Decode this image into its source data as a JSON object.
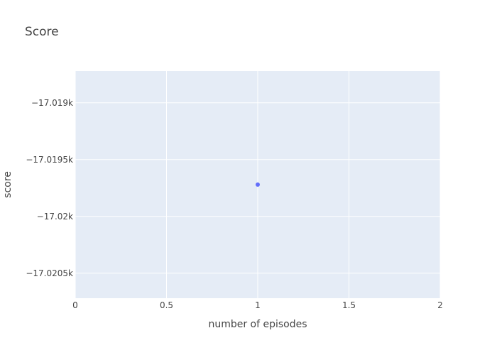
{
  "chart_data": {
    "type": "scatter",
    "title": "Score",
    "xlabel": "number of episodes",
    "ylabel": "score",
    "xlim": [
      0,
      2
    ],
    "ylim": [
      -17.02072,
      -17.01872
    ],
    "x_ticks": [
      {
        "value": 0,
        "label": "0"
      },
      {
        "value": 0.5,
        "label": "0.5"
      },
      {
        "value": 1,
        "label": "1"
      },
      {
        "value": 1.5,
        "label": "1.5"
      },
      {
        "value": 2,
        "label": "2"
      }
    ],
    "y_ticks": [
      {
        "value": -17.019,
        "label": "−17.019k"
      },
      {
        "value": -17.0195,
        "label": "−17.0195k"
      },
      {
        "value": -17.02,
        "label": "−17.02k"
      },
      {
        "value": -17.0205,
        "label": "−17.0205k"
      }
    ],
    "series": [
      {
        "x": [
          1
        ],
        "y": [
          -17.01972
        ]
      }
    ],
    "grid": true,
    "colors": {
      "plot_bg": "#e5ecf6",
      "grid": "#ffffff",
      "marker": "#636efa",
      "text": "#444444"
    }
  }
}
